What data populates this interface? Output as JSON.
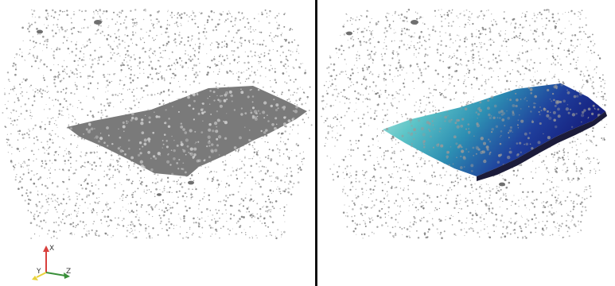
{
  "views": [
    {
      "name": "left-view",
      "mode": "solid-gray",
      "surface_color": "#7a7a7a",
      "point_color": "#7f7f7f"
    },
    {
      "name": "right-view",
      "mode": "colored-surface",
      "gradient_colors": [
        "#bfe6e0",
        "#5fc6c8",
        "#2d8fb3",
        "#1f3f9c",
        "#141a78"
      ],
      "point_color": "#7f7f7f"
    }
  ],
  "divider_color": "#111111",
  "axes_triad": {
    "labels": {
      "x": "X",
      "y": "Y",
      "z": "Z"
    },
    "colors": {
      "x": "#d8403d",
      "y": "#e8d23a",
      "z": "#3a8f3a"
    }
  }
}
